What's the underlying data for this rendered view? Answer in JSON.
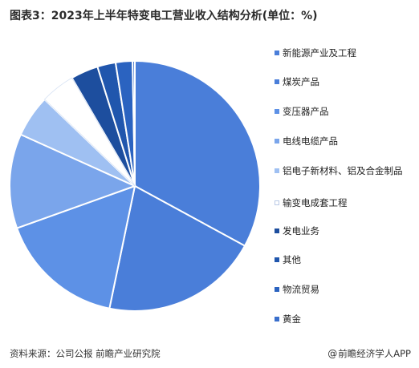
{
  "title": "图表3：2023年上半年特变电工营业收入结构分析(单位：%)",
  "footer": {
    "source": "资料来源：公司公报 前瞻产业研究院",
    "brand": "前瞻经济学人APP",
    "brand_icon": "at-icon"
  },
  "chart_data": {
    "type": "pie",
    "title": "图表3：2023年上半年特变电工营业收入结构分析(单位：%)",
    "legend_position": "right",
    "start_angle_deg": 0,
    "direction": "clockwise",
    "slices": [
      {
        "label": "新能源产业及工程",
        "value": 33.4,
        "color": "#4a7ed9"
      },
      {
        "label": "煤炭产品",
        "value": 20.6,
        "color": "#4a7ed9"
      },
      {
        "label": "变压器产品",
        "value": 16.5,
        "color": "#5d91e6"
      },
      {
        "label": "电线电缆产品",
        "value": 12.4,
        "color": "#7aa5eb"
      },
      {
        "label": "铝电子新材料、铝及合金制品",
        "value": 5.5,
        "color": "#9fc0f2"
      },
      {
        "label": "输变电成套工程",
        "value": 4.5,
        "color": "#ffffff"
      },
      {
        "label": "发电业务",
        "value": 3.6,
        "color": "#1d4e9e"
      },
      {
        "label": "其他",
        "value": 2.4,
        "color": "#2056ad"
      },
      {
        "label": "物流贸易",
        "value": 2.2,
        "color": "#2b63c0"
      },
      {
        "label": "黄金",
        "value": 0.3,
        "color": "#3a6fcc"
      }
    ]
  }
}
